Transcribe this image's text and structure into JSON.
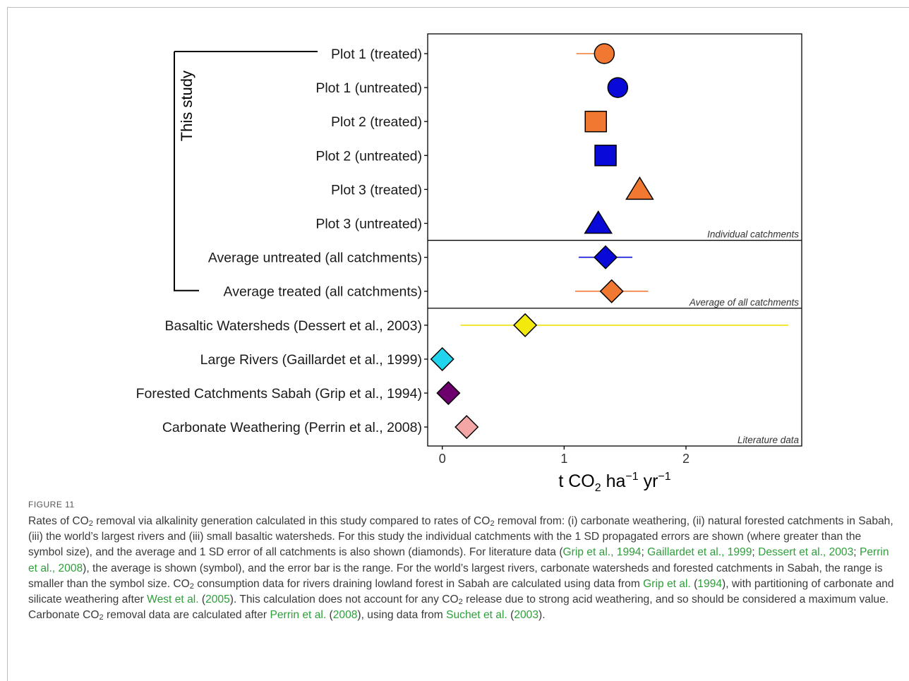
{
  "figure_label": "FIGURE 11",
  "caption": {
    "t01": "Rates of CO",
    "s01": "2",
    "t02": " removal via alkalinity generation calculated in this study compared to rates of CO",
    "s02": "2",
    "t03": " removal from: (i) carbonate weathering, (ii) natural forested catchments in Sabah, (iii) the world’s largest rivers and (iii) small basaltic watersheds. For this study the individual catchments with the 1 SD propagated errors are shown (where greater than the symbol size), and the average and 1 SD error of all catchments is also shown (diamonds). For literature data (",
    "l01": "Grip et al., 1994",
    "t04": "; ",
    "l02": "Gaillardet et al., 1999",
    "t05": "; ",
    "l03": "Dessert et al., 2003",
    "t06": "; ",
    "l04": "Perrin et al., 2008",
    "t07": "), the average is shown (symbol), and the error bar is the range. For the world’s largest rivers, carbonate watersheds and forested catchments in Sabah, the range is smaller than the symbol size. CO",
    "s03": "2",
    "t08": " consumption data for rivers draining lowland forest in Sabah are calculated using data from ",
    "l05": "Grip et al.",
    "t09": " (",
    "l06": "1994",
    "t10": "), with partitioning of carbonate and silicate weathering after ",
    "l07": "West et al.",
    "t11": " (",
    "l08": "2005",
    "t12": "). This calculation does not account for any CO",
    "s04": "2",
    "t13": " release due to strong acid weathering, and so should be considered a maximum value. Carbonate CO",
    "s05": "2",
    "t14": " removal data are calculated after ",
    "l09": "Perrin et al.",
    "t15": " (",
    "l10": "2008",
    "t16": "), using data from ",
    "l11": "Suchet et al.",
    "t17": " (",
    "l12": "2003",
    "t18": ")."
  },
  "chart_data": {
    "type": "scatter",
    "orientation": "horizontal",
    "xlabel": {
      "main": "t CO",
      "sub": "2",
      "mid": " ha",
      "sup1": "−1",
      "end": " yr",
      "sup2": "−1"
    },
    "xlim": [
      -0.12,
      2.95
    ],
    "x_ticks": [
      "0",
      "1",
      "2"
    ],
    "x_tick_values": [
      0,
      1,
      2
    ],
    "bracket_label": "This study",
    "panels": [
      {
        "label": "Individual catchments"
      },
      {
        "label": "Average of all catchments"
      },
      {
        "label": "Literature data"
      }
    ],
    "points": [
      {
        "label": "Plot 1 (treated)",
        "panel": 0,
        "x": 1.33,
        "err": [
          1.1,
          1.33
        ],
        "shape": "circle",
        "color": "#f07830"
      },
      {
        "label": "Plot 1 (untreated)",
        "panel": 0,
        "x": 1.44,
        "err": null,
        "shape": "circle",
        "color": "#0a0ad8"
      },
      {
        "label": "Plot 2 (treated)",
        "panel": 0,
        "x": 1.26,
        "err": null,
        "shape": "square",
        "color": "#f07830"
      },
      {
        "label": "Plot 2 (untreated)",
        "panel": 0,
        "x": 1.34,
        "err": null,
        "shape": "square",
        "color": "#0a0ad8"
      },
      {
        "label": "Plot 3 (treated)",
        "panel": 0,
        "x": 1.62,
        "err": null,
        "shape": "triangle",
        "color": "#f07830"
      },
      {
        "label": "Plot 3 (untreated)",
        "panel": 0,
        "x": 1.28,
        "err": null,
        "shape": "triangle",
        "color": "#0a0ad8"
      },
      {
        "label": "Average untreated (all catchments)",
        "panel": 1,
        "x": 1.34,
        "err": [
          1.12,
          1.56
        ],
        "shape": "diamond",
        "color": "#0a0ad8"
      },
      {
        "label": "Average treated (all catchments)",
        "panel": 1,
        "x": 1.39,
        "err": [
          1.09,
          1.69
        ],
        "shape": "diamond",
        "color": "#f07830"
      },
      {
        "label": "Basaltic Watersheds (Dessert et al., 2003)",
        "panel": 2,
        "x": 0.68,
        "err": [
          0.15,
          2.84
        ],
        "shape": "diamond",
        "color": "#f2ea0c"
      },
      {
        "label": "Large Rivers (Gaillardet et al., 1999)",
        "panel": 2,
        "x": 0.0,
        "err": null,
        "shape": "diamond",
        "color": "#21d4ee"
      },
      {
        "label": "Forested Catchments Sabah (Grip et al., 1994)",
        "panel": 2,
        "x": 0.05,
        "err": null,
        "shape": "diamond",
        "color": "#6e006e"
      },
      {
        "label": "Carbonate Weathering (Perrin et al., 2008)",
        "panel": 2,
        "x": 0.2,
        "err": null,
        "shape": "diamond",
        "color": "#f4a6a6"
      }
    ]
  }
}
